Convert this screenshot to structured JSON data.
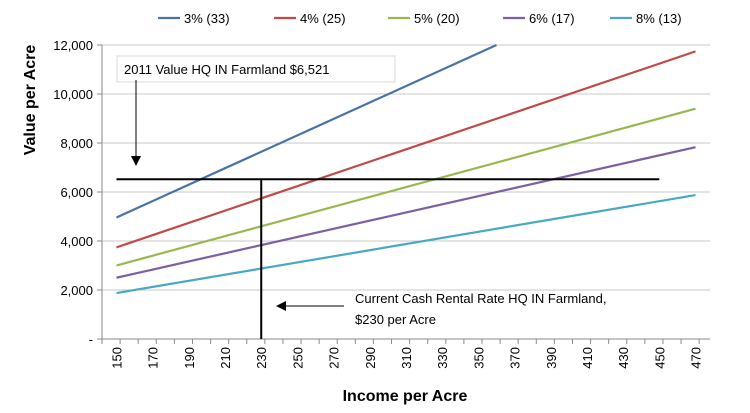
{
  "chart_data": {
    "type": "line",
    "title": "",
    "xlabel": "Income per Acre",
    "ylabel": "Value per Acre",
    "x_range": [
      142,
      478
    ],
    "ylim": [
      0,
      12000
    ],
    "x_ticks": [
      150,
      170,
      190,
      210,
      230,
      250,
      270,
      290,
      310,
      330,
      350,
      370,
      390,
      410,
      430,
      450,
      470
    ],
    "y_ticks": [
      0,
      2000,
      4000,
      6000,
      8000,
      10000,
      12000
    ],
    "y_tick_labels": [
      "-",
      "2,000",
      "4,000",
      "6,000",
      "8,000",
      "10,000",
      "12,000"
    ],
    "x_tick_labels": [
      "150",
      "170",
      "190",
      "210",
      "230",
      "250",
      "270",
      "290",
      "310",
      "330",
      "350",
      "370",
      "390",
      "410",
      "430",
      "450",
      "470"
    ],
    "grid": "horizontal",
    "legend_position": "top",
    "series": [
      {
        "name": "3% (33)",
        "color": "#4a72a6",
        "x": [
          150,
          360
        ],
        "values": [
          4960,
          12000
        ]
      },
      {
        "name": "4% (25)",
        "color": "#bf4b48",
        "x": [
          150,
          470
        ],
        "values": [
          3740,
          11740
        ]
      },
      {
        "name": "5% (20)",
        "color": "#97b84f",
        "x": [
          150,
          470
        ],
        "values": [
          3000,
          9400
        ]
      },
      {
        "name": "6% (17)",
        "color": "#7d5fa2",
        "x": [
          150,
          470
        ],
        "values": [
          2500,
          7830
        ]
      },
      {
        "name": "8% (13)",
        "color": "#4aa8c2",
        "x": [
          150,
          470
        ],
        "values": [
          1875,
          5875
        ]
      }
    ],
    "reference_lines": {
      "horizontal": {
        "y": 6521,
        "x_from": 150,
        "x_to": 450,
        "color": "#000000"
      },
      "vertical": {
        "x": 230,
        "y_from": 0,
        "y_to": 6521,
        "color": "#000000"
      }
    },
    "annotations": [
      {
        "text": "2011 Value HQ IN Farmland $6,521"
      },
      {
        "text_line1": "Current Cash Rental Rate HQ IN Farmland,",
        "text_line2": "$230 per Acre"
      }
    ]
  }
}
